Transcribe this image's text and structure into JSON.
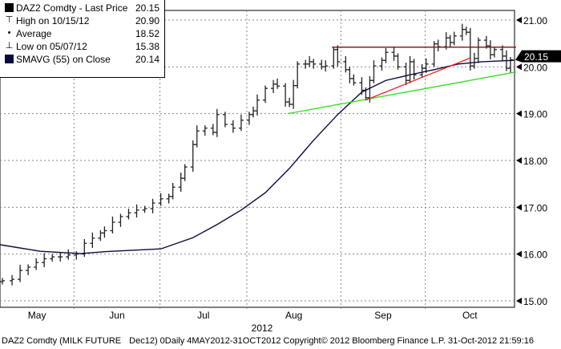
{
  "legend": {
    "items": [
      {
        "label": "DAZ2 Comdty - Last Price",
        "value": "20.15",
        "icon": "black-square"
      },
      {
        "label": "High on 10/15/12",
        "value": "20.90",
        "icon": "high-marker"
      },
      {
        "label": "Average",
        "value": "18.52",
        "icon": "average-marker"
      },
      {
        "label": "Low on 05/07/12",
        "value": "15.38",
        "icon": "low-marker"
      },
      {
        "label": "SMAVG (55) on Close",
        "value": "20.14",
        "icon": "navy-square"
      }
    ]
  },
  "footer": {
    "left": "DAZ2 Comdty (MILK FUTURE",
    "right": "Dec12) 0Daily 4MAY2012-31OCT2012 Copyright© 2012 Bloomberg Finance L.P. 31-Oct-2012 21:59:16"
  },
  "chart_data": {
    "type": "line",
    "subtype": "ohlc-bars",
    "title": "DAZ2 Comdty - Last Price",
    "xlabel": "2012",
    "ylabel": "",
    "x_unit": "trading days since 4 May 2012",
    "xlim": [
      0,
      128
    ],
    "ylim": [
      14.8,
      21.2
    ],
    "yticks": [
      15,
      16,
      17,
      18,
      19,
      20,
      21
    ],
    "ytick_labels": [
      "15.00",
      "16.00",
      "17.00",
      "18.00",
      "19.00",
      "20.00",
      "21.00"
    ],
    "months": [
      {
        "label": "May",
        "start": 0,
        "end": 18.4
      },
      {
        "label": "Jun",
        "start": 18.4,
        "end": 39.8
      },
      {
        "label": "Jul",
        "start": 39.8,
        "end": 61.4
      },
      {
        "label": "Aug",
        "start": 61.4,
        "end": 84.8
      },
      {
        "label": "Sep",
        "start": 84.8,
        "end": 105.8
      },
      {
        "label": "Oct",
        "start": 105.8,
        "end": 128
      }
    ],
    "last_price": 20.15,
    "grid": true,
    "legend_position": "top-left",
    "price": [
      [
        0.6,
        15.43
      ],
      [
        3,
        15.46
      ],
      [
        5,
        15.65
      ],
      [
        7,
        15.72
      ],
      [
        9,
        15.82
      ],
      [
        11,
        15.9
      ],
      [
        13,
        15.94
      ],
      [
        15,
        15.94
      ],
      [
        17,
        15.98
      ],
      [
        19,
        16.0
      ],
      [
        21,
        16.23
      ],
      [
        23,
        16.34
      ],
      [
        25,
        16.45
      ],
      [
        26,
        16.5
      ],
      [
        28,
        16.68
      ],
      [
        30,
        16.8
      ],
      [
        32,
        16.88
      ],
      [
        34,
        16.94
      ],
      [
        36,
        16.97
      ],
      [
        38,
        17.09
      ],
      [
        40,
        17.18
      ],
      [
        42,
        17.23
      ],
      [
        43,
        17.43
      ],
      [
        45,
        17.62
      ],
      [
        46,
        17.86
      ],
      [
        48,
        18.34
      ],
      [
        49,
        18.63
      ],
      [
        51,
        18.69
      ],
      [
        53,
        18.6
      ],
      [
        54,
        18.98
      ],
      [
        56,
        18.77
      ],
      [
        58,
        18.69
      ],
      [
        60,
        18.86
      ],
      [
        62,
        18.98
      ],
      [
        63,
        19.06
      ],
      [
        64,
        19.29
      ],
      [
        66,
        19.54
      ],
      [
        68,
        19.63
      ],
      [
        69,
        19.59
      ],
      [
        71,
        19.25
      ],
      [
        72,
        19.2
      ],
      [
        73,
        19.6
      ],
      [
        74,
        20.06
      ],
      [
        76,
        20.06
      ],
      [
        77,
        20.11
      ],
      [
        78,
        20.06
      ],
      [
        80,
        20.0
      ],
      [
        81,
        20.02
      ],
      [
        83,
        20.37
      ],
      [
        84,
        20.11
      ],
      [
        86,
        19.94
      ],
      [
        87,
        19.75
      ],
      [
        88,
        19.66
      ],
      [
        90,
        19.5
      ],
      [
        91,
        19.34
      ],
      [
        92,
        19.71
      ],
      [
        93,
        20.02
      ],
      [
        95,
        20.14
      ],
      [
        96,
        20.31
      ],
      [
        98,
        20.23
      ],
      [
        99,
        20.0
      ],
      [
        101,
        19.71
      ],
      [
        102,
        20.11
      ],
      [
        103,
        19.83
      ],
      [
        105,
        19.97
      ],
      [
        106,
        20.06
      ],
      [
        108,
        20.49
      ],
      [
        109,
        20.43
      ],
      [
        111,
        20.62
      ],
      [
        112,
        20.52
      ],
      [
        113,
        20.66
      ],
      [
        115,
        20.8
      ],
      [
        116,
        20.74
      ],
      [
        117,
        20.02
      ],
      [
        118,
        20.18
      ],
      [
        119,
        20.57
      ],
      [
        121,
        20.45
      ],
      [
        122,
        20.26
      ],
      [
        123,
        20.37
      ],
      [
        125,
        20.23
      ],
      [
        126,
        19.97
      ],
      [
        127,
        20.15
      ]
    ],
    "series": [
      {
        "name": "SMAVG (55) on Close",
        "color": "#0a0a3c",
        "points": [
          [
            0,
            16.2
          ],
          [
            10,
            16.06
          ],
          [
            20,
            16.01
          ],
          [
            26,
            16.05
          ],
          [
            40,
            16.11
          ],
          [
            48,
            16.35
          ],
          [
            54,
            16.63
          ],
          [
            60,
            16.94
          ],
          [
            66,
            17.31
          ],
          [
            72,
            17.83
          ],
          [
            78,
            18.43
          ],
          [
            84,
            18.98
          ],
          [
            90,
            19.46
          ],
          [
            96,
            19.71
          ],
          [
            102,
            19.83
          ],
          [
            108,
            19.94
          ],
          [
            114,
            20.06
          ],
          [
            120,
            20.11
          ],
          [
            128,
            20.14
          ]
        ]
      }
    ],
    "trendlines": [
      {
        "name": "support-trendline",
        "color": "#33dd22",
        "from": [
          71.6,
          19.0
        ],
        "to": [
          128.4,
          19.89
        ]
      },
      {
        "name": "rising-trendline",
        "color": "#ee2222",
        "from": [
          91,
          19.29
        ],
        "to": [
          117,
          20.19
        ]
      },
      {
        "name": "resistance-line",
        "color": "#7a1010",
        "from": [
          82.6,
          20.42
        ],
        "to": [
          128.4,
          20.42
        ]
      }
    ]
  }
}
